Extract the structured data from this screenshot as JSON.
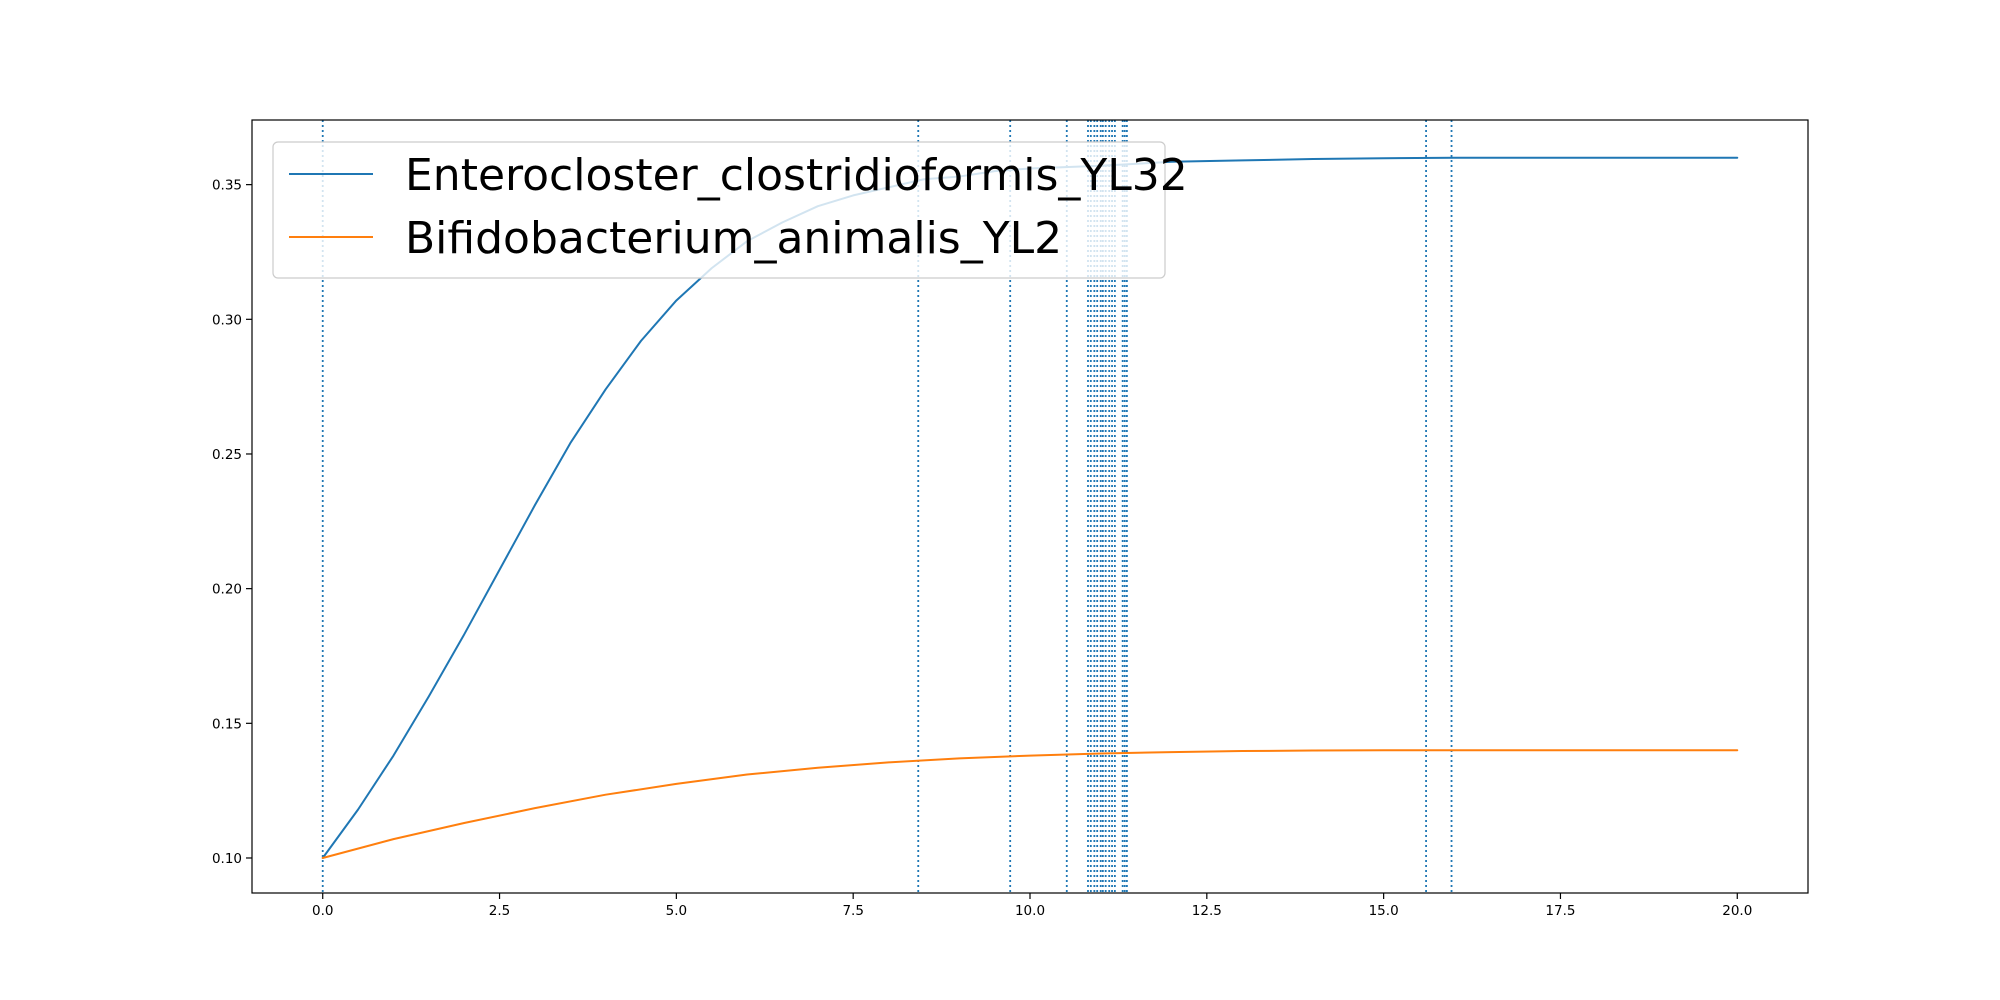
{
  "chart_data": {
    "type": "line",
    "title": "",
    "xlabel": "",
    "ylabel": "",
    "xlim": [
      -1.0,
      21.0
    ],
    "ylim": [
      0.087,
      0.374
    ],
    "xticks": [
      0.0,
      2.5,
      5.0,
      7.5,
      10.0,
      12.5,
      15.0,
      17.5,
      20.0
    ],
    "xtick_labels": [
      "0.0",
      "2.5",
      "5.0",
      "7.5",
      "10.0",
      "12.5",
      "15.0",
      "17.5",
      "20.0"
    ],
    "yticks": [
      0.1,
      0.15,
      0.2,
      0.25,
      0.3,
      0.35
    ],
    "ytick_labels": [
      "0.10",
      "0.15",
      "0.20",
      "0.25",
      "0.30",
      "0.35"
    ],
    "grid": false,
    "legend": {
      "position": "upper-left"
    },
    "series": [
      {
        "name": "Enterocloster_clostridioformis_YL32",
        "color": "#1f77b4",
        "x": [
          0,
          0.5,
          1,
          1.5,
          2,
          2.5,
          3,
          3.5,
          4,
          4.5,
          5,
          5.5,
          6,
          6.5,
          7,
          7.5,
          8,
          8.5,
          9,
          9.5,
          10,
          11,
          12,
          13,
          14,
          15,
          16,
          17,
          18,
          19,
          20
        ],
        "values": [
          0.1,
          0.118,
          0.138,
          0.16,
          0.183,
          0.207,
          0.231,
          0.254,
          0.274,
          0.292,
          0.307,
          0.319,
          0.329,
          0.336,
          0.342,
          0.346,
          0.349,
          0.352,
          0.353,
          0.355,
          0.356,
          0.357,
          0.3585,
          0.359,
          0.3595,
          0.3598,
          0.36,
          0.36,
          0.36,
          0.36,
          0.36
        ]
      },
      {
        "name": "Bifidobacterium_animalis_YL2",
        "color": "#ff7f0e",
        "x": [
          0,
          1,
          2,
          3,
          4,
          5,
          6,
          7,
          8,
          9,
          10,
          11,
          12,
          13,
          14,
          15,
          16,
          17,
          18,
          19,
          20
        ],
        "values": [
          0.1,
          0.107,
          0.113,
          0.1185,
          0.1235,
          0.1275,
          0.131,
          0.1335,
          0.1355,
          0.137,
          0.138,
          0.1388,
          0.1393,
          0.1397,
          0.1399,
          0.14,
          0.14,
          0.14,
          0.14,
          0.14,
          0.14
        ]
      }
    ],
    "vlines": {
      "color": "#1f77b4",
      "style": "dotted",
      "x": [
        0.0,
        8.42,
        9.72,
        10.52,
        10.82,
        10.86,
        10.91,
        10.95,
        11.0,
        11.03,
        11.07,
        11.12,
        11.16,
        11.2,
        11.31,
        11.34,
        11.37,
        15.6,
        15.96
      ]
    }
  }
}
